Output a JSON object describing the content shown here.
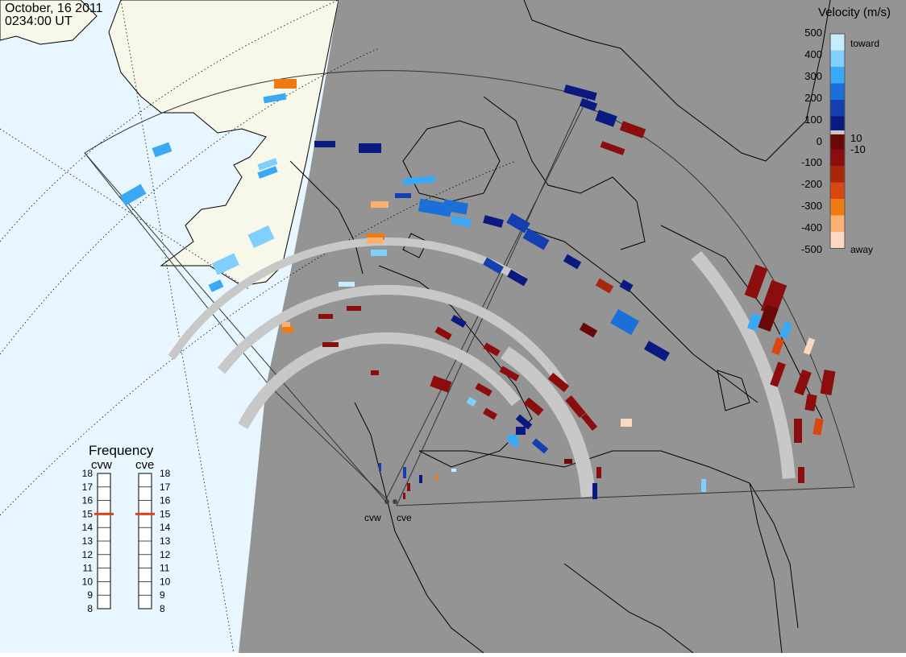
{
  "header": {
    "date": "October, 16 2011",
    "time": "0234:00 UT"
  },
  "radars": [
    {
      "code": "cvw",
      "frequency": 15
    },
    {
      "code": "cve",
      "frequency": 15
    }
  ],
  "colorbar": {
    "title": "Velocity (m/s)",
    "ticks": [
      "500",
      "400",
      "300",
      "200",
      "100",
      "10",
      "0",
      "-10",
      "-100",
      "-200",
      "-300",
      "-400",
      "-500"
    ],
    "toward_label": "toward",
    "away_label": "away",
    "colors": [
      "#c6ecff",
      "#7fd0ff",
      "#39a8f5",
      "#1a6fd8",
      "#143fb0",
      "#0a1a80",
      "#6a0808",
      "#8c0d0d",
      "#a8260a",
      "#d9460f",
      "#f07a12",
      "#f9b070",
      "#fbd9c0"
    ],
    "ground_scatter_color": "#c8c8c8"
  },
  "frequency_panel": {
    "title": "Frequency",
    "ticks": [
      "18",
      "17",
      "16",
      "15",
      "14",
      "13",
      "12",
      "11",
      "10",
      "9",
      "8"
    ],
    "marker_color": "#e0401a"
  },
  "map": {
    "night_color": "#949494",
    "day_ocean_color": "#e8f7ff",
    "day_land_color": "#f8f8ea",
    "coast_color": "#000000"
  }
}
